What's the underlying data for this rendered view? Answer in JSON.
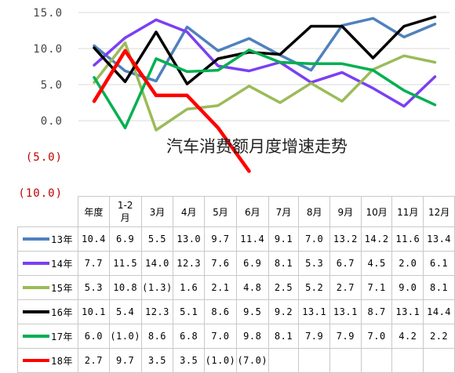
{
  "chart_data": {
    "type": "line",
    "title": "汽车消费额月度增速走势",
    "categories": [
      "年度",
      "1-2月",
      "3月",
      "4月",
      "5月",
      "6月",
      "7月",
      "8月",
      "9月",
      "10月",
      "11月",
      "12月"
    ],
    "yticks": [
      "15.0",
      "10.0",
      "5.0",
      "0.0",
      "(5.0)",
      "(10.0)"
    ],
    "ylim": [
      -10,
      15
    ],
    "grid": "horizontal",
    "series": [
      {
        "name": "13年",
        "color": "#4f81bd",
        "values": [
          10.4,
          6.9,
          5.5,
          13.0,
          9.7,
          11.4,
          9.1,
          7.0,
          13.2,
          14.2,
          11.6,
          13.4
        ],
        "labels": [
          "10.4",
          "6.9",
          "5.5",
          "13.0",
          "9.7",
          "11.4",
          "9.1",
          "7.0",
          "13.2",
          "14.2",
          "11.6",
          "13.4"
        ]
      },
      {
        "name": "14年",
        "color": "#7b3ff2",
        "values": [
          7.7,
          11.5,
          14.0,
          12.3,
          7.6,
          6.9,
          8.1,
          5.3,
          6.7,
          4.5,
          2.0,
          6.1
        ],
        "labels": [
          "7.7",
          "11.5",
          "14.0",
          "12.3",
          "7.6",
          "6.9",
          "8.1",
          "5.3",
          "6.7",
          "4.5",
          "2.0",
          "6.1"
        ]
      },
      {
        "name": "15年",
        "color": "#9bbb59",
        "values": [
          5.3,
          10.8,
          -1.3,
          1.6,
          2.1,
          4.8,
          2.5,
          5.2,
          2.7,
          7.1,
          9.0,
          8.1
        ],
        "labels": [
          "5.3",
          "10.8",
          "(1.3)",
          "1.6",
          "2.1",
          "4.8",
          "2.5",
          "5.2",
          "2.7",
          "7.1",
          "9.0",
          "8.1"
        ]
      },
      {
        "name": "16年",
        "color": "#000000",
        "values": [
          10.1,
          5.4,
          12.3,
          5.1,
          8.6,
          9.5,
          9.2,
          13.1,
          13.1,
          8.7,
          13.1,
          14.4
        ],
        "labels": [
          "10.1",
          "5.4",
          "12.3",
          "5.1",
          "8.6",
          "9.5",
          "9.2",
          "13.1",
          "13.1",
          "8.7",
          "13.1",
          "14.4"
        ]
      },
      {
        "name": "17年",
        "color": "#00b050",
        "values": [
          6.0,
          -1.0,
          8.6,
          6.8,
          7.0,
          9.8,
          8.1,
          7.9,
          7.9,
          7.0,
          4.2,
          2.2
        ],
        "labels": [
          "6.0",
          "(1.0)",
          "8.6",
          "6.8",
          "7.0",
          "9.8",
          "8.1",
          "7.9",
          "7.9",
          "7.0",
          "4.2",
          "2.2"
        ]
      },
      {
        "name": "18年",
        "color": "#ff0000",
        "values": [
          2.7,
          9.7,
          3.5,
          3.5,
          -1.0,
          -7.0,
          null,
          null,
          null,
          null,
          null,
          null
        ],
        "labels": [
          "2.7",
          "9.7",
          "3.5",
          "3.5",
          "(1.0)",
          "(7.0)",
          "",
          "",
          "",
          "",
          "",
          ""
        ]
      }
    ]
  }
}
